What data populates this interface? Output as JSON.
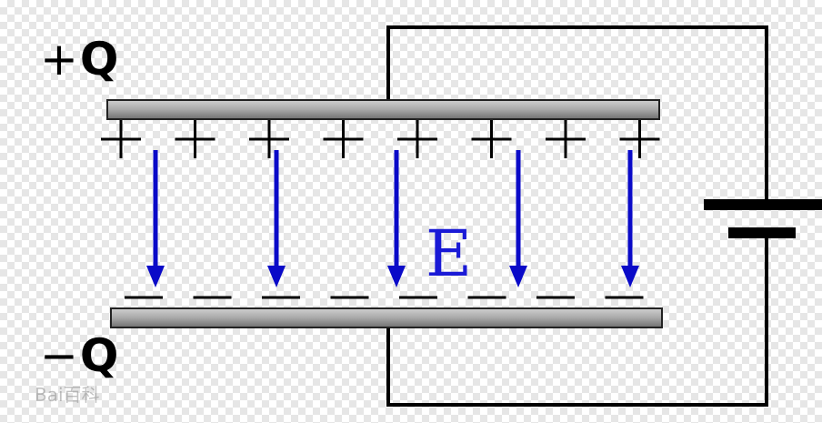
{
  "capacitor": {
    "top_plate_label": {
      "sign": "+",
      "symbol": "Q"
    },
    "bottom_plate_label": {
      "sign": "−",
      "symbol": "Q"
    },
    "field_label": "E",
    "plus_count": 8,
    "minus_count": 8,
    "arrow_count": 5
  },
  "watermark": "Bai百科",
  "colors": {
    "plate": "#9e9e9e",
    "wire": "#000000",
    "arrow": "#0a0ac8",
    "field_label": "#1a1ad6"
  }
}
